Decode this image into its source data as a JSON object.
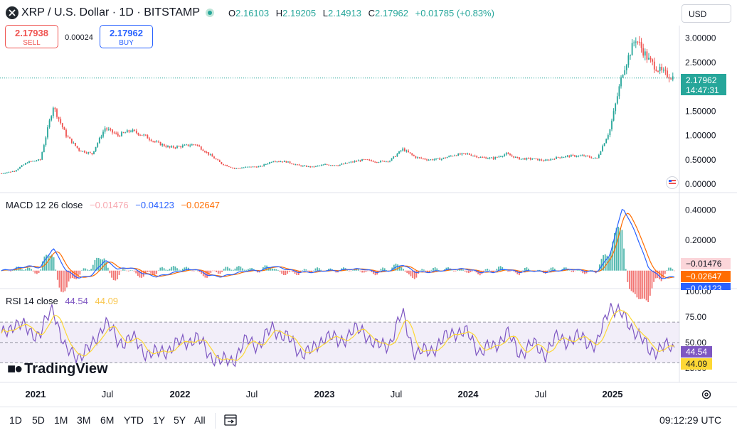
{
  "header": {
    "title": "XRP / U.S. Dollar · 1D · BITSTAMP",
    "ohlc": [
      {
        "k": "O",
        "v": "2.16103"
      },
      {
        "k": "H",
        "v": "2.19205"
      },
      {
        "k": "L",
        "v": "2.14913"
      },
      {
        "k": "C",
        "v": "2.17962"
      }
    ],
    "change": "+0.01785 (+0.83%)",
    "currency": "USD"
  },
  "trade": {
    "sell_price": "2.17938",
    "sell_label": "SELL",
    "buy_price": "2.17962",
    "buy_label": "BUY",
    "spread": "0.00024"
  },
  "price_pane": {
    "y_ticks": [
      "3.00000",
      "2.50000",
      "2.00000",
      "1.50000",
      "1.00000",
      "0.50000",
      "0.00000"
    ],
    "last_price": "2.17962",
    "countdown": "14:47:31"
  },
  "macd_pane": {
    "label": "MACD 12 26 close",
    "hist_value": "−0.01476",
    "macd_value": "−0.04123",
    "signal_value": "−0.02647",
    "y_ticks": [
      "0.40000",
      "0.20000"
    ],
    "tag_hist": "−0.01476",
    "tag_signal": "−0.02647",
    "tag_macd": "−0.04123"
  },
  "rsi_pane": {
    "label": "RSI 14 close",
    "rsi_value": "44.54",
    "ma_value": "44.09",
    "y_ticks": [
      "100.00",
      "75.00",
      "50.00",
      "25.00"
    ],
    "tag_rsi": "44.54",
    "tag_ma": "44.09"
  },
  "x_axis": [
    "2021",
    "Jul",
    "2022",
    "Jul",
    "2023",
    "Jul",
    "2024",
    "Jul",
    "2025"
  ],
  "brand": "TradingView",
  "bottom": {
    "ranges": [
      "1D",
      "5D",
      "1M",
      "3M",
      "6M",
      "YTD",
      "1Y",
      "5Y",
      "All"
    ],
    "time": "09:12:29 UTC"
  },
  "colors": {
    "up": "#26a69a",
    "down": "#ef5350",
    "macd": "#2962ff",
    "signal": "#ff6d00",
    "rsi": "#7e57c2",
    "rsi_ma": "#fdd835",
    "price_tag": "#26a69a"
  },
  "chart_data": {
    "type": "line",
    "title": "XRP / U.S. Dollar · 1D · BITSTAMP",
    "x": [
      "2020-12",
      "2021-01",
      "2021-02",
      "2021-03",
      "2021-04",
      "2021-05",
      "2021-06",
      "2021-07",
      "2021-08",
      "2021-09",
      "2021-10",
      "2021-11",
      "2021-12",
      "2022-01",
      "2022-02",
      "2022-03",
      "2022-04",
      "2022-05",
      "2022-06",
      "2022-07",
      "2022-08",
      "2022-09",
      "2022-10",
      "2022-11",
      "2022-12",
      "2023-01",
      "2023-02",
      "2023-03",
      "2023-04",
      "2023-05",
      "2023-06",
      "2023-07",
      "2023-08",
      "2023-09",
      "2023-10",
      "2023-11",
      "2023-12",
      "2024-01",
      "2024-02",
      "2024-03",
      "2024-04",
      "2024-05",
      "2024-06",
      "2024-07",
      "2024-08",
      "2024-09",
      "2024-10",
      "2024-11",
      "2024-12",
      "2025-01",
      "2025-02",
      "2025-03",
      "2025-04"
    ],
    "series": [
      {
        "name": "XRP / U.S. Dollar",
        "values": [
          0.22,
          0.27,
          0.45,
          0.5,
          1.6,
          1.0,
          0.7,
          0.62,
          1.15,
          1.0,
          1.1,
          1.0,
          0.85,
          0.75,
          0.78,
          0.82,
          0.62,
          0.42,
          0.32,
          0.35,
          0.36,
          0.48,
          0.46,
          0.38,
          0.35,
          0.4,
          0.39,
          0.45,
          0.5,
          0.46,
          0.48,
          0.72,
          0.55,
          0.5,
          0.52,
          0.6,
          0.62,
          0.55,
          0.53,
          0.62,
          0.52,
          0.52,
          0.48,
          0.55,
          0.58,
          0.58,
          0.52,
          1.1,
          2.3,
          3.0,
          2.55,
          2.3,
          2.18
        ]
      },
      {
        "name": "MACD 12 26 close",
        "values": [
          0.0,
          0.01,
          0.03,
          0.02,
          0.15,
          0.0,
          -0.05,
          -0.03,
          0.07,
          0.01,
          0.02,
          -0.02,
          -0.04,
          -0.02,
          0.0,
          0.01,
          -0.03,
          -0.04,
          -0.02,
          0.0,
          0.0,
          0.03,
          0.01,
          -0.01,
          -0.01,
          0.0,
          0.0,
          0.01,
          0.01,
          -0.01,
          0.0,
          0.04,
          -0.01,
          -0.01,
          0.0,
          0.01,
          0.01,
          -0.01,
          -0.01,
          0.01,
          -0.01,
          0.0,
          -0.01,
          0.0,
          0.01,
          0.0,
          -0.01,
          0.1,
          0.42,
          0.25,
          0.02,
          -0.05,
          -0.04123
        ]
      },
      {
        "name": "RSI 14 close",
        "values": [
          55,
          70,
          62,
          58,
          85,
          40,
          38,
          45,
          72,
          50,
          55,
          42,
          38,
          45,
          50,
          55,
          40,
          30,
          35,
          52,
          48,
          65,
          55,
          42,
          40,
          58,
          50,
          60,
          62,
          45,
          50,
          78,
          38,
          42,
          50,
          62,
          58,
          42,
          45,
          60,
          40,
          48,
          40,
          55,
          52,
          55,
          45,
          88,
          75,
          62,
          42,
          45,
          44.54
        ]
      }
    ],
    "ylim_price": [
      0,
      3.3
    ],
    "ylim_macd": [
      -0.1,
      0.45
    ],
    "ylim_rsi": [
      20,
      100
    ]
  }
}
